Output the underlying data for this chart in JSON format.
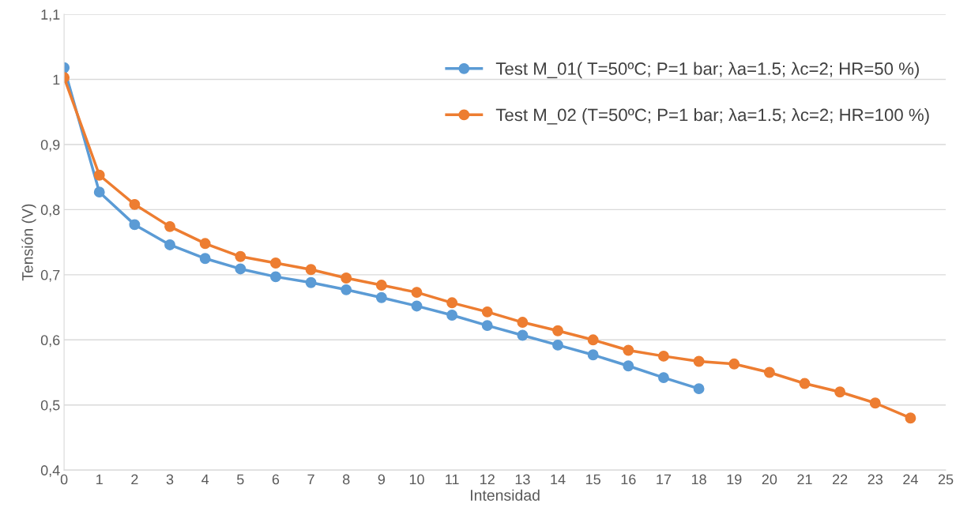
{
  "chart_data": {
    "type": "line",
    "xlabel": "Intensidad",
    "ylabel": "Tensión (V)",
    "x": [
      0,
      1,
      2,
      3,
      4,
      5,
      6,
      7,
      8,
      9,
      10,
      11,
      12,
      13,
      14,
      15,
      16,
      17,
      18,
      19,
      20,
      21,
      22,
      23,
      24
    ],
    "series": [
      {
        "name": "Test M_01( T=50ºC; P=1 bar; λa=1.5; λc=2; HR=50 %)",
        "color": "#5b9bd5",
        "values": [
          1.018,
          0.827,
          0.777,
          0.746,
          0.725,
          0.709,
          0.697,
          0.688,
          0.677,
          0.665,
          0.652,
          0.638,
          0.622,
          0.607,
          0.592,
          0.577,
          0.56,
          0.542,
          0.525,
          null,
          null,
          null,
          null,
          null,
          null
        ]
      },
      {
        "name": "Test M_02 (T=50ºC; P=1 bar; λa=1.5; λc=2; HR=100 %)",
        "color": "#ed7d31",
        "values": [
          1.003,
          0.853,
          0.808,
          0.774,
          0.748,
          0.728,
          0.718,
          0.708,
          0.695,
          0.684,
          0.673,
          0.657,
          0.643,
          0.627,
          0.614,
          0.6,
          0.584,
          0.575,
          0.567,
          0.563,
          0.55,
          0.533,
          0.52,
          0.503,
          0.48
        ]
      }
    ],
    "xlim": [
      0,
      25
    ],
    "xticks": [
      0,
      1,
      2,
      3,
      4,
      5,
      6,
      7,
      8,
      9,
      10,
      11,
      12,
      13,
      14,
      15,
      16,
      17,
      18,
      19,
      20,
      21,
      22,
      23,
      24,
      25
    ],
    "ylim": [
      0.4,
      1.1
    ],
    "yticks": [
      {
        "value": 0.4,
        "label": "0,4"
      },
      {
        "value": 0.5,
        "label": "0,5"
      },
      {
        "value": 0.6,
        "label": "0,6"
      },
      {
        "value": 0.7,
        "label": "0,7"
      },
      {
        "value": 0.8,
        "label": "0,8"
      },
      {
        "value": 0.9,
        "label": "0,9"
      },
      {
        "value": 1,
        "label": "1"
      },
      {
        "value": 1.1,
        "label": "1,1"
      }
    ],
    "grid": "y",
    "legend": "top right",
    "marker": "circle",
    "line_style": "solid"
  }
}
